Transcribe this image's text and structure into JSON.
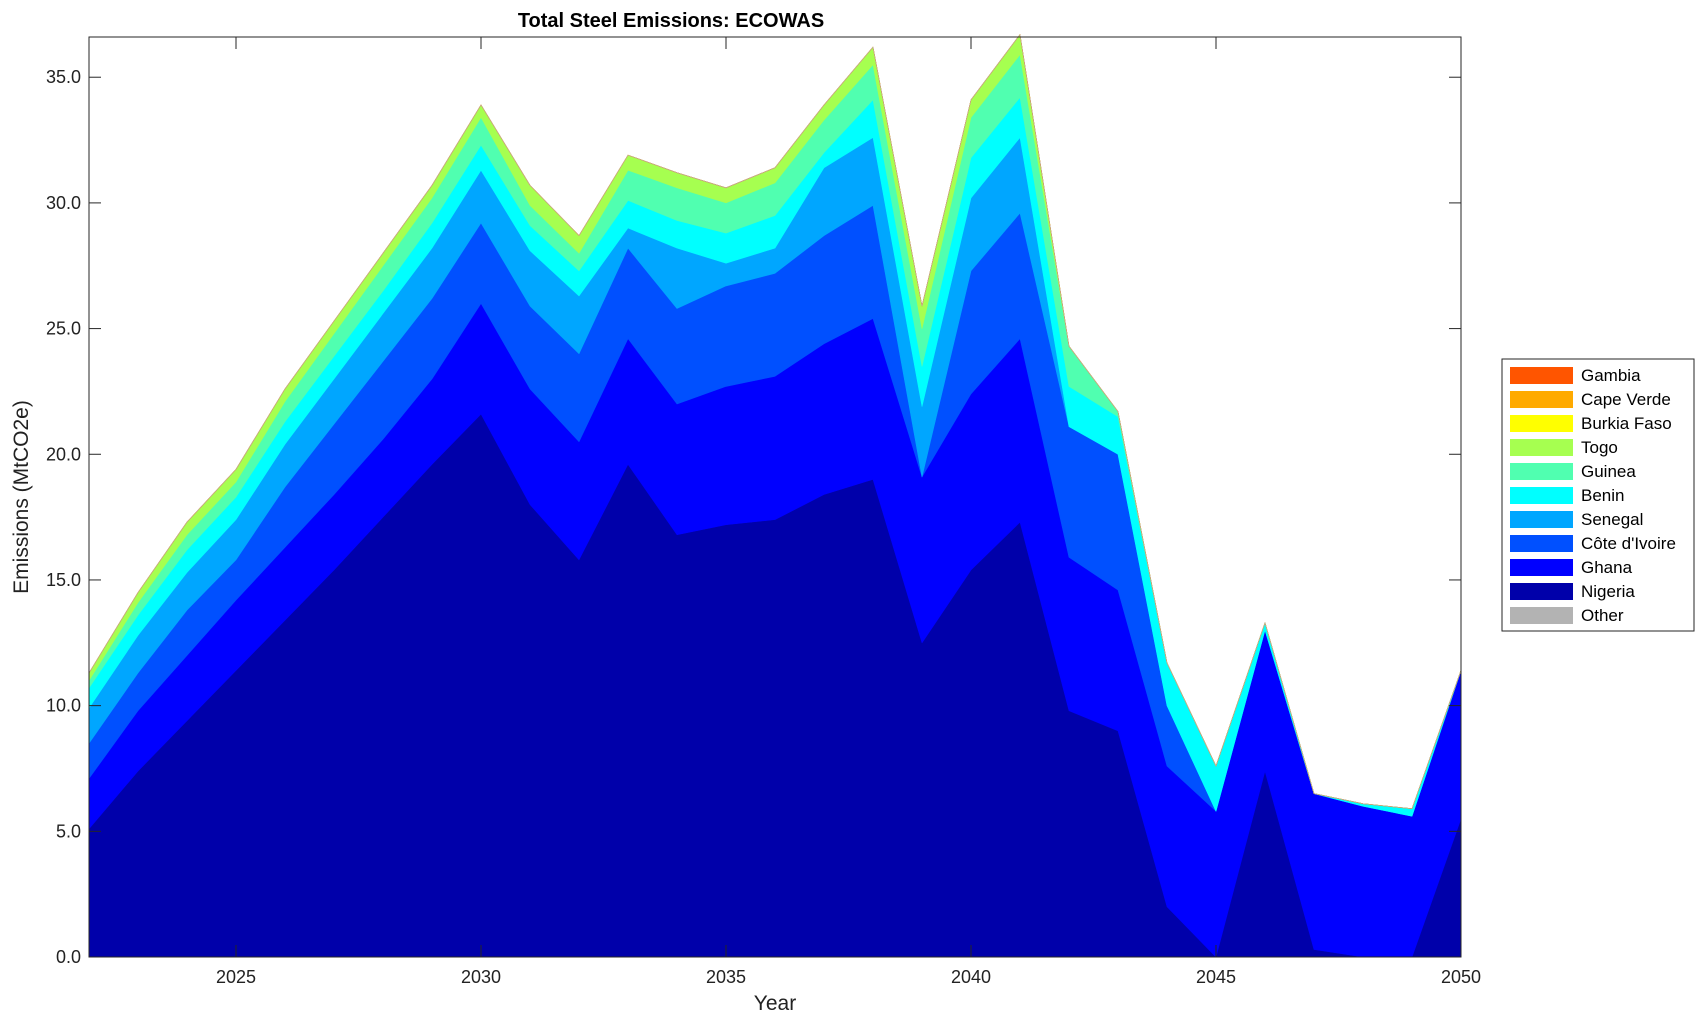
{
  "chart_data": {
    "type": "area",
    "title": "Total Steel Emissions: ECOWAS",
    "xlabel": "Year",
    "ylabel": "Emissions (MtCO2e)",
    "xlim": [
      2022,
      2050
    ],
    "ylim": [
      0,
      36.6
    ],
    "x_ticks": [
      2025,
      2030,
      2035,
      2040,
      2045,
      2050
    ],
    "y_ticks": [
      0,
      5,
      10,
      15,
      20,
      25,
      30,
      35
    ],
    "y_tick_labels": [
      "0.0",
      "5.0",
      "10.0",
      "15.0",
      "20.0",
      "25.0",
      "30.0",
      "35.0"
    ],
    "stacked": true,
    "grid": false,
    "legend_position": "right",
    "x": [
      2022,
      2023,
      2024,
      2025,
      2026,
      2027,
      2028,
      2029,
      2030,
      2031,
      2032,
      2033,
      2034,
      2035,
      2036,
      2037,
      2038,
      2039,
      2040,
      2041,
      2042,
      2043,
      2044,
      2045,
      2046,
      2047,
      2048,
      2049,
      2050
    ],
    "series": [
      {
        "name": "Nigeria",
        "color": "#0000AA",
        "values": [
          5.1,
          7.4,
          9.4,
          11.4,
          13.4,
          15.4,
          17.5,
          19.6,
          21.6,
          18.0,
          15.8,
          19.6,
          16.8,
          17.2,
          17.4,
          18.4,
          19.0,
          12.5,
          15.4,
          17.3,
          9.8,
          9.0,
          2.0,
          0.0,
          7.4,
          0.3,
          0.0,
          0.0,
          5.5
        ]
      },
      {
        "name": "Ghana",
        "color": "#0000FF",
        "values": [
          2.0,
          2.4,
          2.6,
          2.8,
          2.9,
          3.0,
          3.1,
          3.4,
          4.4,
          4.6,
          4.7,
          5.0,
          5.2,
          5.5,
          5.7,
          6.0,
          6.4,
          6.6,
          7.0,
          7.3,
          6.1,
          5.6,
          5.6,
          5.8,
          5.6,
          6.2,
          6.0,
          5.6,
          5.9
        ]
      },
      {
        "name": "Côte d'Ivoire",
        "color": "#0050FF",
        "values": [
          1.4,
          1.5,
          1.8,
          1.6,
          2.4,
          2.8,
          3.1,
          3.2,
          3.2,
          3.3,
          3.5,
          3.6,
          3.8,
          4.0,
          4.1,
          4.3,
          4.5,
          0.0,
          4.9,
          5.0,
          5.2,
          5.4,
          2.4,
          0.0,
          0.0,
          0.0,
          0.0,
          0.0,
          0.0
        ]
      },
      {
        "name": "Senegal",
        "color": "#00A6FF",
        "values": [
          1.4,
          1.5,
          1.5,
          1.6,
          1.7,
          1.8,
          1.9,
          2.0,
          2.1,
          2.2,
          2.3,
          0.8,
          2.4,
          0.9,
          1.0,
          2.7,
          2.7,
          2.8,
          2.9,
          3.0,
          0.0,
          0.0,
          0.0,
          0.0,
          0.0,
          0.0,
          0.0,
          0.0,
          0.0
        ]
      },
      {
        "name": "Benin",
        "color": "#00FFFF",
        "values": [
          0.8,
          0.8,
          0.9,
          0.9,
          0.9,
          0.9,
          0.9,
          1.0,
          1.0,
          1.0,
          1.0,
          1.1,
          1.1,
          1.2,
          1.3,
          0.6,
          1.5,
          1.6,
          1.6,
          1.6,
          1.6,
          1.5,
          1.7,
          1.8,
          0.3,
          0.0,
          0.1,
          0.3,
          0.0
        ]
      },
      {
        "name": "Guinea",
        "color": "#50FFB0",
        "values": [
          0.3,
          0.5,
          0.6,
          0.6,
          0.8,
          0.9,
          1.0,
          1.0,
          1.1,
          0.8,
          0.7,
          1.2,
          1.3,
          1.2,
          1.3,
          1.3,
          1.4,
          1.5,
          1.6,
          1.7,
          1.6,
          0.2,
          0.0,
          0.0,
          0.0,
          0.0,
          0.0,
          0.0,
          0.0
        ]
      },
      {
        "name": "Togo",
        "color": "#A6FF50",
        "values": [
          0.3,
          0.4,
          0.5,
          0.5,
          0.5,
          0.5,
          0.5,
          0.5,
          0.5,
          0.8,
          0.7,
          0.6,
          0.6,
          0.6,
          0.6,
          0.6,
          0.7,
          0.9,
          0.7,
          0.8,
          0.0,
          0.0,
          0.0,
          0.0,
          0.0,
          0.0,
          0.0,
          0.0,
          0.0
        ]
      },
      {
        "name": "Burkia Faso",
        "color": "#FFFF00",
        "values": [
          0,
          0,
          0,
          0,
          0,
          0,
          0,
          0,
          0,
          0,
          0,
          0,
          0,
          0,
          0,
          0,
          0,
          0,
          0,
          0,
          0,
          0,
          0,
          0,
          0,
          0,
          0,
          0,
          0
        ]
      },
      {
        "name": "Cape Verde",
        "color": "#FFAA00",
        "values": [
          0,
          0,
          0,
          0,
          0,
          0,
          0,
          0,
          0,
          0,
          0,
          0,
          0,
          0,
          0,
          0,
          0,
          0,
          0,
          0,
          0,
          0,
          0,
          0,
          0,
          0,
          0,
          0,
          0
        ]
      },
      {
        "name": "Gambia",
        "color": "#FF5500",
        "values": [
          0,
          0,
          0,
          0,
          0,
          0,
          0,
          0,
          0,
          0,
          0,
          0,
          0,
          0,
          0,
          0,
          0,
          0,
          0,
          0,
          0,
          0,
          0,
          0,
          0,
          0,
          0,
          0,
          0
        ]
      },
      {
        "name": "Other",
        "color": "#B3B3B3",
        "values": [
          0,
          0,
          0,
          0,
          0,
          0,
          0,
          0,
          0,
          0,
          0,
          0,
          0,
          0,
          0,
          0,
          0,
          0,
          0,
          0,
          0,
          0,
          0,
          0,
          0,
          0,
          0,
          0,
          0
        ]
      }
    ],
    "legend": [
      {
        "name": "Gambia",
        "color": "#FF5500"
      },
      {
        "name": "Cape Verde",
        "color": "#FFAA00"
      },
      {
        "name": "Burkia Faso",
        "color": "#FFFF00"
      },
      {
        "name": "Togo",
        "color": "#A6FF50"
      },
      {
        "name": "Guinea",
        "color": "#50FFB0"
      },
      {
        "name": "Benin",
        "color": "#00FFFF"
      },
      {
        "name": "Senegal",
        "color": "#00A6FF"
      },
      {
        "name": "Côte d'Ivoire",
        "color": "#0050FF"
      },
      {
        "name": "Ghana",
        "color": "#0000FF"
      },
      {
        "name": "Nigeria",
        "color": "#0000AA"
      },
      {
        "name": "Other",
        "color": "#B3B3B3"
      }
    ]
  }
}
